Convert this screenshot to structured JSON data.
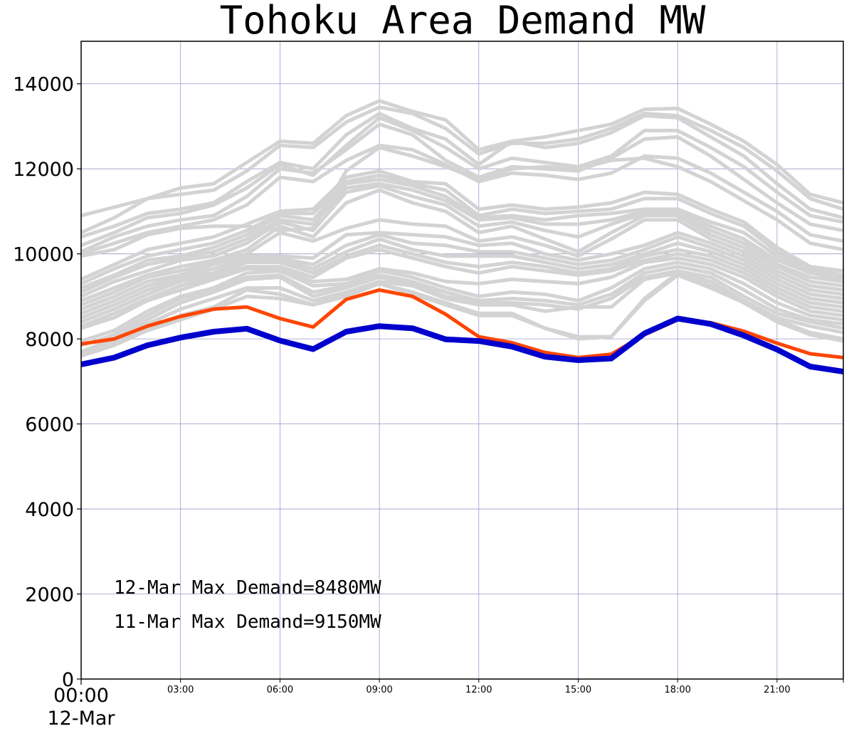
{
  "chart_data": {
    "type": "line",
    "title": "Tohoku Area Demand MW",
    "xlabel": "",
    "ylabel": "",
    "ylim": [
      0,
      15000
    ],
    "xlim": [
      0,
      23
    ],
    "y_ticks": [
      0,
      2000,
      4000,
      6000,
      8000,
      10000,
      12000,
      14000
    ],
    "y_tick_labels": [
      "0",
      "2000",
      "4000",
      "6000",
      "8000",
      "10000",
      "12000",
      "14000"
    ],
    "x_ticks": [
      3,
      6,
      9,
      12,
      15,
      18,
      21
    ],
    "x_tick_labels": [
      "03:00",
      "06:00",
      "09:00",
      "12:00",
      "15:00",
      "18:00",
      "21:00"
    ],
    "x_major_label": [
      "00:00",
      "12-Mar"
    ],
    "grid": true,
    "x": [
      0,
      1,
      2,
      3,
      4,
      5,
      6,
      7,
      8,
      9,
      10,
      11,
      12,
      13,
      14,
      15,
      16,
      17,
      18,
      19,
      20,
      21,
      22,
      23
    ],
    "annotations": [
      "12-Mar Max Demand=8480MW",
      "11-Mar Max Demand=9150MW"
    ],
    "colors": {
      "history": "#d3d3d3",
      "mar11": "#ff4500",
      "mar12": "#0000cd",
      "grid": "#9999cc"
    },
    "series_history": [
      {
        "values": [
          10900,
          11100,
          11300,
          11550,
          11650,
          12150,
          12650,
          12600,
          13250,
          13600,
          13350,
          13150,
          12450,
          12650,
          12750,
          12900,
          13050,
          13400,
          13420,
          13050,
          12650,
          12100,
          11400,
          11200
        ]
      },
      {
        "values": [
          10500,
          10850,
          11300,
          11400,
          11500,
          11950,
          12550,
          12500,
          13100,
          13450,
          13300,
          12950,
          12350,
          12600,
          12600,
          12700,
          12950,
          13300,
          13250,
          12900,
          12500,
          11950,
          11300,
          11050
        ]
      },
      {
        "values": [
          10400,
          10650,
          10950,
          11050,
          11200,
          11700,
          12150,
          12000,
          12800,
          13300,
          12950,
          12700,
          12100,
          12650,
          12500,
          12600,
          12850,
          13250,
          13200,
          12750,
          12300,
          11650,
          11050,
          10850
        ]
      },
      {
        "values": [
          10200,
          10500,
          10850,
          10950,
          11150,
          11550,
          12100,
          11850,
          12550,
          13200,
          12900,
          12500,
          12000,
          12250,
          12150,
          12050,
          12300,
          12900,
          12900,
          12500,
          12050,
          11450,
          10900,
          10750
        ]
      },
      {
        "values": [
          10050,
          10400,
          10650,
          10800,
          10900,
          11350,
          12000,
          11900,
          12450,
          13050,
          12800,
          12200,
          11800,
          12050,
          12000,
          11950,
          12250,
          12700,
          12750,
          12300,
          11750,
          11200,
          10700,
          10550
        ]
      },
      {
        "values": [
          10000,
          10250,
          10500,
          10650,
          10800,
          11150,
          11800,
          11700,
          12200,
          12550,
          12450,
          12100,
          11700,
          11900,
          11850,
          11750,
          11900,
          12300,
          12250,
          11900,
          11450,
          11000,
          10450,
          10300
        ]
      },
      {
        "values": [
          9950,
          10100,
          10450,
          10600,
          10650,
          10650,
          10550,
          10600,
          11950,
          12500,
          12300,
          12050,
          11750,
          12000,
          12050,
          12000,
          12200,
          12250,
          12050,
          11700,
          11250,
          10800,
          10250,
          10100
        ]
      },
      {
        "values": [
          9400,
          9750,
          10100,
          10250,
          10400,
          10700,
          11000,
          11050,
          11800,
          11950,
          11700,
          11650,
          11050,
          11150,
          11050,
          11100,
          11200,
          11450,
          11400,
          11050,
          10750,
          10150,
          9700,
          9600
        ]
      },
      {
        "values": [
          9300,
          9650,
          9950,
          10100,
          10250,
          10550,
          10950,
          10950,
          11700,
          11850,
          11650,
          11500,
          10900,
          11050,
          10950,
          11000,
          11050,
          11300,
          11300,
          10950,
          10650,
          10050,
          9650,
          9500
        ]
      },
      {
        "values": [
          9200,
          9500,
          9850,
          9950,
          10150,
          10450,
          10900,
          10800,
          11650,
          11750,
          11600,
          11350,
          10850,
          10900,
          10800,
          10900,
          10950,
          11050,
          11050,
          10750,
          10500,
          9950,
          9600,
          9450
        ]
      },
      {
        "values": [
          9100,
          9450,
          9750,
          9900,
          10050,
          10350,
          10800,
          10700,
          11550,
          11650,
          11500,
          11250,
          10800,
          10850,
          10700,
          10700,
          10800,
          11000,
          11000,
          10650,
          10350,
          9850,
          9550,
          9400
        ]
      },
      {
        "values": [
          9000,
          9350,
          9600,
          9850,
          9950,
          10250,
          10750,
          10550,
          11450,
          11600,
          11350,
          11150,
          10650,
          10750,
          10550,
          10400,
          10700,
          10950,
          10950,
          10550,
          10250,
          9750,
          9450,
          9350
        ]
      },
      {
        "values": [
          8900,
          9200,
          9500,
          9700,
          9850,
          10100,
          10650,
          10400,
          11200,
          11500,
          11200,
          11000,
          10500,
          10650,
          10350,
          10050,
          10500,
          10900,
          10900,
          10450,
          10150,
          9700,
          9350,
          9250
        ]
      },
      {
        "values": [
          8800,
          9100,
          9450,
          9600,
          9800,
          10000,
          10500,
          10300,
          10600,
          10800,
          10700,
          10650,
          10300,
          10400,
          10200,
          9950,
          10350,
          10800,
          10800,
          10350,
          10050,
          9600,
          9250,
          9150
        ]
      },
      {
        "values": [
          8700,
          9000,
          9350,
          9500,
          9750,
          9950,
          9950,
          9900,
          10450,
          10500,
          10450,
          10400,
          10200,
          10250,
          10000,
          9850,
          10000,
          10200,
          10500,
          10250,
          9950,
          9500,
          9150,
          9050
        ]
      },
      {
        "values": [
          8600,
          8900,
          9250,
          9450,
          9650,
          9900,
          9900,
          9750,
          10200,
          10450,
          10250,
          10200,
          10050,
          10050,
          9900,
          9750,
          9850,
          10100,
          10400,
          10150,
          9850,
          9400,
          9050,
          8950
        ]
      },
      {
        "values": [
          8500,
          8800,
          9150,
          9400,
          9550,
          9850,
          9850,
          9650,
          10050,
          10350,
          10100,
          9950,
          9950,
          9950,
          9800,
          9650,
          9750,
          10000,
          10250,
          10050,
          9750,
          9300,
          8950,
          8850
        ]
      },
      {
        "values": [
          8400,
          8700,
          9050,
          9350,
          9500,
          9800,
          9800,
          9550,
          9950,
          10200,
          10000,
          9800,
          9700,
          9800,
          9700,
          9550,
          9650,
          9950,
          10100,
          9950,
          9650,
          9200,
          8850,
          8750
        ]
      },
      {
        "values": [
          8300,
          8600,
          8950,
          9250,
          9450,
          9700,
          9700,
          9450,
          9900,
          10100,
          9900,
          9700,
          9550,
          9700,
          9600,
          9500,
          9600,
          9850,
          10000,
          9850,
          9550,
          9100,
          8750,
          8650
        ]
      },
      {
        "values": [
          8250,
          8500,
          8900,
          9150,
          9400,
          9650,
          9650,
          9350,
          9400,
          9650,
          9550,
          9350,
          9300,
          9400,
          9350,
          9300,
          9450,
          9800,
          9900,
          9750,
          9450,
          9000,
          8650,
          8550
        ]
      },
      {
        "values": [
          7950,
          8200,
          8650,
          9000,
          9200,
          9550,
          9600,
          9250,
          9300,
          9600,
          9450,
          9200,
          9000,
          9100,
          9050,
          8900,
          9200,
          9650,
          9800,
          9650,
          9300,
          8850,
          8550,
          8450
        ]
      },
      {
        "values": [
          7850,
          8100,
          8550,
          8950,
          9150,
          9450,
          9500,
          9100,
          9250,
          9500,
          9350,
          9100,
          8900,
          8950,
          8900,
          8800,
          9050,
          9550,
          9700,
          9550,
          9150,
          8700,
          8450,
          8350
        ]
      },
      {
        "values": [
          7700,
          8000,
          8450,
          8850,
          9100,
          9400,
          9450,
          9000,
          9200,
          9450,
          9300,
          9000,
          8850,
          8850,
          8800,
          8700,
          8950,
          9450,
          9600,
          9450,
          9000,
          8600,
          8400,
          8250
        ]
      },
      {
        "values": [
          7650,
          7950,
          8350,
          8700,
          8950,
          9200,
          9200,
          8900,
          9100,
          9350,
          9250,
          8950,
          8800,
          8800,
          8650,
          8750,
          8750,
          9400,
          9550,
          9350,
          8900,
          8500,
          8300,
          8150
        ]
      },
      {
        "values": [
          7600,
          7900,
          8250,
          8550,
          8750,
          9150,
          9050,
          8800,
          9050,
          9300,
          9100,
          8850,
          8600,
          8600,
          8250,
          8050,
          8050,
          8950,
          9550,
          9250,
          8900,
          8450,
          8150,
          8000
        ]
      },
      {
        "values": [
          7600,
          7850,
          8200,
          8450,
          8700,
          9000,
          8950,
          8800,
          9000,
          9300,
          9050,
          8800,
          8550,
          8550,
          8250,
          8000,
          8050,
          8900,
          9500,
          9200,
          8850,
          8400,
          8100,
          7950
        ]
      }
    ],
    "series": [
      {
        "values": [
          7880,
          8000,
          8300,
          8530,
          8700,
          8750,
          8480,
          8280,
          8930,
          9150,
          9000,
          8580,
          8050,
          7910,
          7680,
          7560,
          7640,
          8100,
          8450,
          8380,
          8180,
          7900,
          7650,
          7560
        ]
      },
      {
        "values": [
          7400,
          7560,
          7850,
          8030,
          8170,
          8240,
          7960,
          7760,
          8170,
          8300,
          8250,
          7990,
          7950,
          7820,
          7580,
          7500,
          7540,
          8130,
          8480,
          8350,
          8080,
          7750,
          7350,
          7230
        ]
      }
    ]
  }
}
